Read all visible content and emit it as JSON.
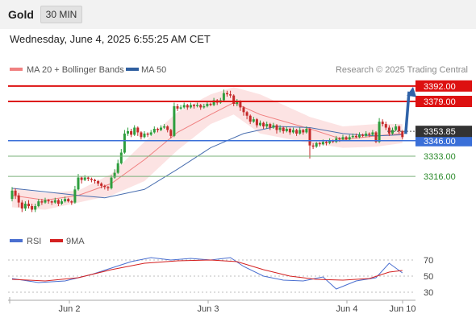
{
  "header": {
    "instrument": "Gold",
    "timeframe_button": "30 MIN"
  },
  "timestamp": "Wednesday, June 4, 2025 6:55:25 AM CET",
  "legend": {
    "ma20_bb": "MA 20 + Bollinger Bands",
    "ma50": "MA 50",
    "source": "Research © 2025 Trading Central"
  },
  "rsi_legend": {
    "rsi": "RSI",
    "ma9": "9MA"
  },
  "colors": {
    "up": "#2e9e3e",
    "down": "#c52a2a",
    "bb_fill": "#fbd9d9",
    "ma20": "#f08080",
    "ma50": "#4a6fb0",
    "resistance": "#dd1111",
    "support": "#3a6fd8",
    "support_green": "#7ab07a",
    "arrow": "#2f62a8",
    "last_price_bg": "#333333",
    "rsi": "#4a6fd0",
    "rsi_ma": "#d42020"
  },
  "chart_data": [
    {
      "type": "candlestick",
      "title": "Gold",
      "timeframe": "30 MIN",
      "x_ticks": [
        "Jun 2",
        "Jun 3",
        "Jun 4",
        "Jun 10"
      ],
      "ylim": [
        3268,
        3400
      ],
      "last_price": 3353.85,
      "levels": [
        {
          "value": 3392.0,
          "label": "3392.00",
          "kind": "resistance"
        },
        {
          "value": 3379.0,
          "label": "3379.00",
          "kind": "resistance"
        },
        {
          "value": 3346.0,
          "label": "3346.00",
          "kind": "pivot"
        },
        {
          "value": 3333.0,
          "label": "3333.00",
          "kind": "support"
        },
        {
          "value": 3316.0,
          "label": "3316.00",
          "kind": "support"
        }
      ],
      "candles": [
        [
          3297,
          3304,
          3307,
          3295
        ],
        [
          3304,
          3300,
          3306,
          3297
        ],
        [
          3300,
          3294,
          3302,
          3290
        ],
        [
          3294,
          3289,
          3296,
          3286
        ],
        [
          3289,
          3293,
          3295,
          3287
        ],
        [
          3293,
          3291,
          3296,
          3289
        ],
        [
          3291,
          3288,
          3293,
          3286
        ],
        [
          3288,
          3291,
          3293,
          3286
        ],
        [
          3291,
          3295,
          3297,
          3290
        ],
        [
          3295,
          3294,
          3297,
          3292
        ],
        [
          3294,
          3296,
          3298,
          3293
        ],
        [
          3296,
          3295,
          3297,
          3293
        ],
        [
          3295,
          3294,
          3296,
          3292
        ],
        [
          3294,
          3296,
          3298,
          3293
        ],
        [
          3296,
          3293,
          3297,
          3291
        ],
        [
          3293,
          3295,
          3297,
          3292
        ],
        [
          3295,
          3297,
          3299,
          3294
        ],
        [
          3297,
          3295,
          3298,
          3294
        ],
        [
          3295,
          3294,
          3296,
          3292
        ],
        [
          3294,
          3305,
          3308,
          3293
        ],
        [
          3305,
          3315,
          3318,
          3304
        ],
        [
          3315,
          3313,
          3316,
          3310
        ],
        [
          3313,
          3315,
          3317,
          3312
        ],
        [
          3315,
          3314,
          3316,
          3312
        ],
        [
          3314,
          3313,
          3315,
          3311
        ],
        [
          3313,
          3312,
          3314,
          3310
        ],
        [
          3312,
          3310,
          3313,
          3308
        ],
        [
          3310,
          3308,
          3311,
          3306
        ],
        [
          3308,
          3307,
          3309,
          3305
        ],
        [
          3307,
          3306,
          3308,
          3304
        ],
        [
          3306,
          3315,
          3317,
          3305
        ],
        [
          3315,
          3319,
          3322,
          3314
        ],
        [
          3319,
          3327,
          3330,
          3318
        ],
        [
          3327,
          3336,
          3339,
          3326
        ],
        [
          3336,
          3352,
          3355,
          3335
        ],
        [
          3352,
          3354,
          3357,
          3350
        ],
        [
          3354,
          3351,
          3356,
          3349
        ],
        [
          3351,
          3357,
          3359,
          3350
        ],
        [
          3357,
          3353,
          3358,
          3350
        ],
        [
          3353,
          3349,
          3354,
          3347
        ],
        [
          3349,
          3352,
          3354,
          3348
        ],
        [
          3352,
          3351,
          3353,
          3349
        ],
        [
          3351,
          3353,
          3355,
          3350
        ],
        [
          3353,
          3356,
          3358,
          3352
        ],
        [
          3356,
          3355,
          3357,
          3353
        ],
        [
          3355,
          3357,
          3359,
          3354
        ],
        [
          3357,
          3358,
          3360,
          3356
        ],
        [
          3358,
          3355,
          3359,
          3353
        ],
        [
          3355,
          3350,
          3356,
          3348
        ],
        [
          3350,
          3375,
          3378,
          3349
        ],
        [
          3375,
          3373,
          3377,
          3371
        ],
        [
          3373,
          3374,
          3376,
          3372
        ],
        [
          3374,
          3376,
          3378,
          3373
        ],
        [
          3376,
          3374,
          3377,
          3372
        ],
        [
          3374,
          3376,
          3378,
          3373
        ],
        [
          3376,
          3375,
          3377,
          3373
        ],
        [
          3375,
          3376,
          3378,
          3374
        ],
        [
          3376,
          3374,
          3377,
          3372
        ],
        [
          3374,
          3375,
          3377,
          3373
        ],
        [
          3375,
          3377,
          3379,
          3374
        ],
        [
          3377,
          3376,
          3378,
          3375
        ],
        [
          3376,
          3380,
          3382,
          3375
        ],
        [
          3380,
          3378,
          3381,
          3376
        ],
        [
          3378,
          3380,
          3382,
          3377
        ],
        [
          3380,
          3386,
          3389,
          3379
        ],
        [
          3386,
          3385,
          3388,
          3383
        ],
        [
          3385,
          3384,
          3388,
          3382
        ],
        [
          3384,
          3377,
          3385,
          3375
        ],
        [
          3377,
          3379,
          3381,
          3375
        ],
        [
          3379,
          3374,
          3380,
          3371
        ],
        [
          3374,
          3370,
          3375,
          3367
        ],
        [
          3370,
          3367,
          3371,
          3364
        ],
        [
          3367,
          3362,
          3368,
          3360
        ],
        [
          3362,
          3364,
          3366,
          3361
        ],
        [
          3364,
          3359,
          3365,
          3357
        ],
        [
          3359,
          3361,
          3363,
          3358
        ],
        [
          3361,
          3358,
          3362,
          3356
        ],
        [
          3358,
          3360,
          3362,
          3356
        ],
        [
          3360,
          3357,
          3361,
          3355
        ],
        [
          3357,
          3359,
          3361,
          3356
        ],
        [
          3359,
          3355,
          3360,
          3352
        ],
        [
          3355,
          3357,
          3359,
          3353
        ],
        [
          3357,
          3354,
          3358,
          3352
        ],
        [
          3354,
          3356,
          3358,
          3353
        ],
        [
          3356,
          3353,
          3357,
          3351
        ],
        [
          3353,
          3355,
          3357,
          3352
        ],
        [
          3355,
          3352,
          3356,
          3350
        ],
        [
          3352,
          3355,
          3357,
          3351
        ],
        [
          3355,
          3353,
          3356,
          3351
        ],
        [
          3353,
          3356,
          3358,
          3352
        ],
        [
          3356,
          3342,
          3357,
          3331
        ],
        [
          3342,
          3341,
          3344,
          3339
        ],
        [
          3341,
          3344,
          3345,
          3340
        ],
        [
          3344,
          3343,
          3345,
          3341
        ],
        [
          3343,
          3345,
          3347,
          3342
        ],
        [
          3345,
          3344,
          3346,
          3342
        ],
        [
          3344,
          3346,
          3348,
          3343
        ],
        [
          3346,
          3345,
          3347,
          3344
        ],
        [
          3345,
          3348,
          3350,
          3344
        ],
        [
          3348,
          3347,
          3349,
          3345
        ],
        [
          3347,
          3349,
          3351,
          3346
        ],
        [
          3349,
          3347,
          3350,
          3346
        ],
        [
          3347,
          3349,
          3351,
          3346
        ],
        [
          3349,
          3350,
          3352,
          3348
        ],
        [
          3350,
          3349,
          3352,
          3348
        ],
        [
          3349,
          3351,
          3353,
          3348
        ],
        [
          3351,
          3350,
          3352,
          3349
        ],
        [
          3350,
          3352,
          3354,
          3349
        ],
        [
          3352,
          3351,
          3353,
          3349
        ],
        [
          3351,
          3353,
          3355,
          3350
        ],
        [
          3353,
          3345,
          3354,
          3344
        ],
        [
          3345,
          3362,
          3365,
          3344
        ],
        [
          3362,
          3360,
          3364,
          3358
        ],
        [
          3360,
          3357,
          3362,
          3355
        ],
        [
          3357,
          3352,
          3359,
          3350
        ],
        [
          3352,
          3355,
          3357,
          3351
        ],
        [
          3355,
          3358,
          3360,
          3354
        ],
        [
          3358,
          3354,
          3359,
          3352
        ],
        [
          3354,
          3349,
          3355,
          3347
        ]
      ],
      "ma20": [
        [
          0,
          3300
        ],
        [
          10,
          3296
        ],
        [
          20,
          3300
        ],
        [
          30,
          3310
        ],
        [
          40,
          3330
        ],
        [
          50,
          3353
        ],
        [
          60,
          3368
        ],
        [
          67,
          3378
        ],
        [
          75,
          3368
        ],
        [
          90,
          3356
        ],
        [
          100,
          3347
        ],
        [
          110,
          3350
        ],
        [
          118,
          3352
        ]
      ],
      "ma50": [
        [
          0,
          3306
        ],
        [
          10,
          3303
        ],
        [
          20,
          3300
        ],
        [
          28,
          3298
        ],
        [
          40,
          3305
        ],
        [
          50,
          3322
        ],
        [
          60,
          3340
        ],
        [
          70,
          3352
        ],
        [
          80,
          3358
        ],
        [
          90,
          3357
        ],
        [
          100,
          3352
        ],
        [
          110,
          3350
        ],
        [
          118,
          3351
        ]
      ],
      "bb_upper": [
        [
          0,
          3306
        ],
        [
          10,
          3302
        ],
        [
          20,
          3304
        ],
        [
          30,
          3318
        ],
        [
          40,
          3345
        ],
        [
          50,
          3370
        ],
        [
          60,
          3385
        ],
        [
          67,
          3391
        ],
        [
          75,
          3385
        ],
        [
          90,
          3366
        ],
        [
          100,
          3358
        ],
        [
          110,
          3360
        ],
        [
          118,
          3360
        ]
      ],
      "bb_lower": [
        [
          0,
          3290
        ],
        [
          10,
          3288
        ],
        [
          20,
          3294
        ],
        [
          30,
          3300
        ],
        [
          40,
          3312
        ],
        [
          50,
          3338
        ],
        [
          60,
          3360
        ],
        [
          67,
          3368
        ],
        [
          75,
          3352
        ],
        [
          90,
          3344
        ],
        [
          100,
          3340
        ],
        [
          110,
          3341
        ],
        [
          118,
          3344
        ]
      ]
    },
    {
      "type": "line",
      "title": "RSI",
      "ylim": [
        25,
        75
      ],
      "y_ticks": [
        70,
        50,
        30
      ],
      "series": [
        {
          "name": "RSI",
          "points": [
            [
              0,
              47
            ],
            [
              8,
              42
            ],
            [
              16,
              44
            ],
            [
              24,
              52
            ],
            [
              30,
              60
            ],
            [
              36,
              68
            ],
            [
              42,
              73
            ],
            [
              48,
              70
            ],
            [
              54,
              72
            ],
            [
              60,
              70
            ],
            [
              66,
              73
            ],
            [
              70,
              62
            ],
            [
              76,
              50
            ],
            [
              82,
              45
            ],
            [
              88,
              44
            ],
            [
              94,
              49
            ],
            [
              98,
              34
            ],
            [
              104,
              44
            ],
            [
              110,
              48
            ],
            [
              114,
              66
            ],
            [
              118,
              54
            ]
          ]
        },
        {
          "name": "9MA",
          "points": [
            [
              0,
              46
            ],
            [
              10,
              44
            ],
            [
              20,
              48
            ],
            [
              30,
              58
            ],
            [
              40,
              66
            ],
            [
              50,
              69
            ],
            [
              60,
              70
            ],
            [
              68,
              68
            ],
            [
              76,
              58
            ],
            [
              84,
              50
            ],
            [
              92,
              46
            ],
            [
              100,
              45
            ],
            [
              108,
              47
            ],
            [
              114,
              55
            ],
            [
              118,
              57
            ]
          ]
        }
      ]
    }
  ]
}
